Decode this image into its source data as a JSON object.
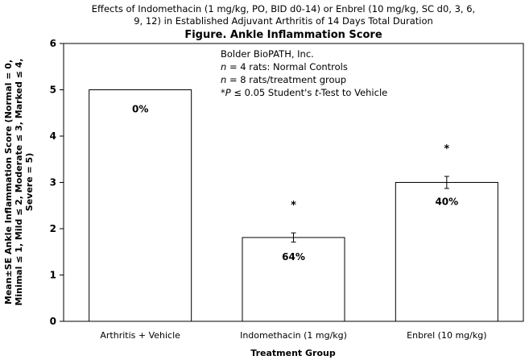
{
  "chart_data": {
    "type": "bar",
    "subtitle_lines": [
      "Effects of Indomethacin (1 mg/kg, PO, BID d0-14) or Enbrel (10 mg/kg, SC d0, 3, 6,",
      "9, 12) in Established Adjuvant Arthritis of 14 Days Total Duration"
    ],
    "title": "Figure. Ankle Inflammation Score",
    "ylabel_lines": [
      "Mean±SE Ankle Inflammation Score (Normal = 0,",
      "Minimal ≤ 1, Mild ≤ 2, Moderate ≤ 3, Marked ≤ 4,",
      "Severe = 5)"
    ],
    "xlabel": "Treatment Group",
    "ylim": [
      0,
      6
    ],
    "yticks": [
      "0",
      "1",
      "2",
      "3",
      "4",
      "5",
      "6"
    ],
    "grid": false,
    "categories": [
      "Arthritis + Vehicle",
      "Indomethacin (1 mg/kg)",
      "Enbrel (10 mg/kg)"
    ],
    "values": [
      5.0,
      1.81,
      3.0
    ],
    "errors": [
      0.0,
      0.1,
      0.13
    ],
    "data_labels": [
      "0%",
      "64%",
      "40%"
    ],
    "significance": [
      "",
      "*",
      "*"
    ],
    "notes": {
      "lab": "Bolder BioPATH, Inc.",
      "n_controls_var": "n",
      "n_controls_rest": " = 4 rats: Normal Controls",
      "n_treatment_var": "n",
      "n_treatment_rest": " = 8 rats/treatment group",
      "stat_prefix": "*",
      "stat_p": "P",
      "stat_mid": " ≤ 0.05 Student's ",
      "stat_t": "t",
      "stat_rest": "-Test to Vehicle"
    },
    "colors": {
      "bar_fill": "#ffffff",
      "bar_stroke": "#000000",
      "axis": "#000000"
    }
  }
}
